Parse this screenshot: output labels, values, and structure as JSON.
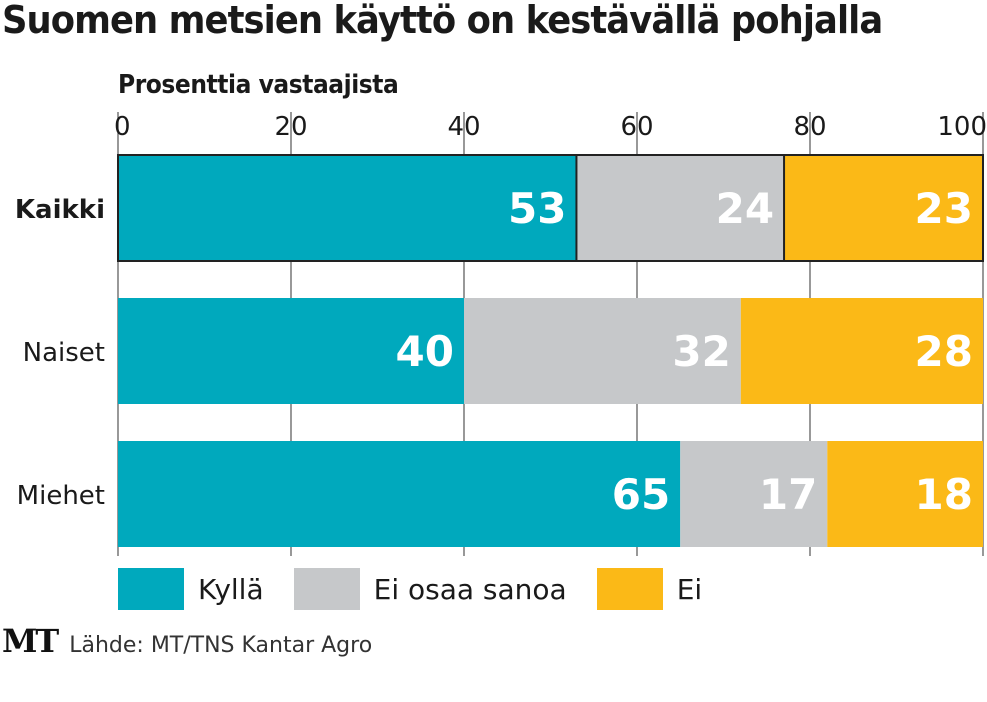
{
  "chart_data": {
    "type": "bar",
    "orientation": "horizontal",
    "stacked": true,
    "title": "Suomen metsien käyttö on kestävällä pohjalla",
    "xlabel": "Prosenttia vastaajista",
    "ylabel": "",
    "xlim": [
      0,
      100
    ],
    "xticks": [
      0,
      20,
      40,
      60,
      80,
      100
    ],
    "grid": true,
    "categories": [
      "Kaikki",
      "Naiset",
      "Miehet"
    ],
    "highlighted_category": "Kaikki",
    "series": [
      {
        "name": "Kyllä",
        "color": "#00a9bd",
        "values": [
          53,
          40,
          65
        ]
      },
      {
        "name": "Ei osaa sanoa",
        "color": "#c6c8ca",
        "values": [
          24,
          32,
          17
        ]
      },
      {
        "name": "Ei",
        "color": "#fbb917",
        "values": [
          23,
          28,
          18
        ]
      }
    ],
    "legend_position": "bottom-left",
    "source": "Lähde: MT/TNS Kantar Agro",
    "logo": "MT"
  }
}
